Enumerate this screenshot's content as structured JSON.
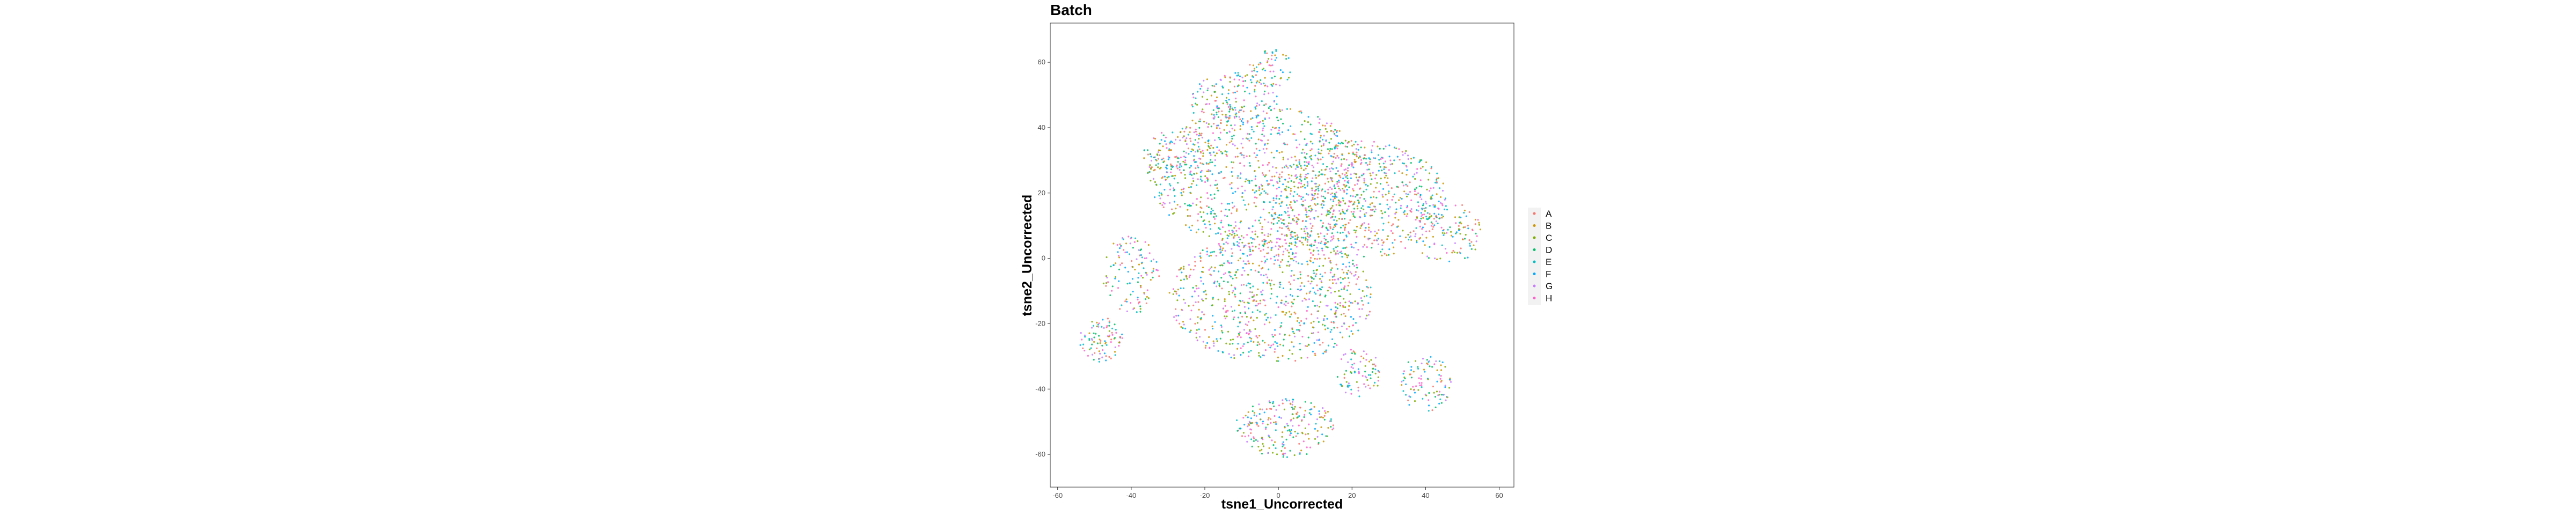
{
  "chart_data": {
    "type": "scatter",
    "title": "Batch",
    "xlabel": "tsne1_Uncorrected",
    "ylabel": "tsne2_Uncorrected",
    "xlim": [
      -62,
      64
    ],
    "ylim": [
      -70,
      72
    ],
    "x_ticks": [
      -60,
      -40,
      -20,
      0,
      20,
      40,
      60
    ],
    "y_ticks": [
      -60,
      -40,
      -20,
      0,
      20,
      40,
      60
    ],
    "x_tick_labels": [
      "-60",
      "-40",
      "-20",
      "0",
      "20",
      "40",
      "60"
    ],
    "y_tick_labels": [
      "-60",
      "-40",
      "-20",
      "0",
      "20",
      "40",
      "60"
    ],
    "grid": false,
    "legend_position": "right",
    "series": [
      {
        "name": "A",
        "color": "#F8766D"
      },
      {
        "name": "B",
        "color": "#CD9600"
      },
      {
        "name": "C",
        "color": "#7CAE00"
      },
      {
        "name": "D",
        "color": "#00BE67"
      },
      {
        "name": "E",
        "color": "#00BFC4"
      },
      {
        "name": "F",
        "color": "#00A9FF"
      },
      {
        "name": "G",
        "color": "#C77CFF"
      },
      {
        "name": "H",
        "color": "#FF61CC"
      }
    ],
    "clusters": [
      {
        "cx": -5,
        "cy": 25,
        "rx": 30,
        "ry": 22,
        "n": 900
      },
      {
        "cx": 22,
        "cy": 18,
        "rx": 24,
        "ry": 18,
        "n": 700
      },
      {
        "cx": -2,
        "cy": -12,
        "rx": 28,
        "ry": 20,
        "n": 850
      },
      {
        "cx": -12,
        "cy": 48,
        "rx": 12,
        "ry": 9,
        "n": 160
      },
      {
        "cx": -27,
        "cy": 30,
        "rx": 10,
        "ry": 10,
        "n": 140
      },
      {
        "cx": 46,
        "cy": 8,
        "rx": 9,
        "ry": 10,
        "n": 120
      },
      {
        "cx": -40,
        "cy": -5,
        "rx": 8,
        "ry": 12,
        "n": 120
      },
      {
        "cx": -48,
        "cy": -25,
        "rx": 6,
        "ry": 7,
        "n": 90
      },
      {
        "cx": 40,
        "cy": -38,
        "rx": 7,
        "ry": 9,
        "n": 100
      },
      {
        "cx": 2,
        "cy": -52,
        "rx": 14,
        "ry": 9,
        "n": 220
      },
      {
        "cx": 22,
        "cy": -35,
        "rx": 6,
        "ry": 8,
        "n": 80
      },
      {
        "cx": -2,
        "cy": 58,
        "rx": 6,
        "ry": 6,
        "n": 60
      }
    ]
  }
}
